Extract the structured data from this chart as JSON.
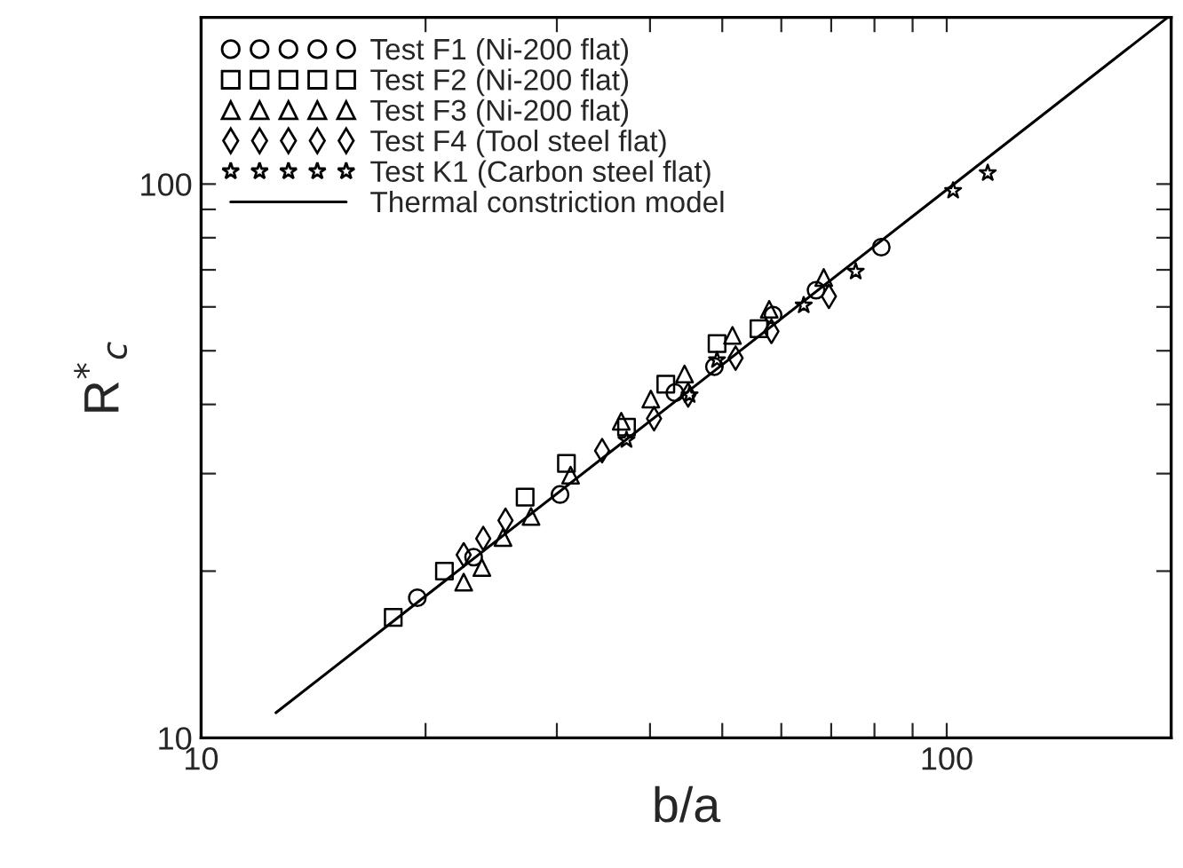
{
  "chart_data": {
    "type": "scatter",
    "xlabel": "b/a",
    "ylabel": "R$^{*}$$_{c}$",
    "log": "xy",
    "legend": "top left",
    "grid": false,
    "xlim": [
      10,
      200
    ],
    "ylim": [
      10,
      200
    ],
    "xticks": [
      10,
      {
        "value": 20,
        "label": null
      },
      {
        "value": 30,
        "label": null
      },
      {
        "value": 40,
        "label": null
      },
      {
        "value": 50,
        "label": null
      },
      {
        "value": 60,
        "label": null
      },
      {
        "value": 70,
        "label": null
      },
      {
        "value": 80,
        "label": null
      },
      {
        "value": 90,
        "label": null
      },
      100,
      {
        "value": 200,
        "label": null
      }
    ],
    "yticks": [
      10,
      {
        "value": 20,
        "label": null
      },
      {
        "value": 30,
        "label": null
      },
      {
        "value": 40,
        "label": null
      },
      {
        "value": 50,
        "label": null
      },
      {
        "value": 60,
        "label": null
      },
      {
        "value": 70,
        "label": null
      },
      {
        "value": 80,
        "label": null
      },
      {
        "value": 90,
        "label": null
      },
      100,
      {
        "value": 200,
        "label": null
      }
    ],
    "series": [
      {
        "name": "Test F1 (Ni-200 flat)",
        "color": "#000000",
        "marker": "circle",
        "x": [
          19.5,
          23.2,
          30.3,
          43.2,
          48.8,
          58.5,
          66.8,
          81.7
        ],
        "values": [
          17.9,
          21.2,
          27.5,
          42.0,
          46.8,
          58.0,
          64.3,
          76.9
        ]
      },
      {
        "name": "Test F2 (Ni-200 flat)",
        "color": "#000000",
        "marker": "square",
        "x": [
          18.1,
          21.2,
          27.2,
          30.9,
          37.2,
          42.0,
          49.2,
          56.0
        ],
        "values": [
          16.5,
          20.0,
          27.2,
          31.3,
          36.4,
          43.5,
          51.5,
          54.8
        ]
      },
      {
        "name": "Test F3 (Ni-200 flat)",
        "color": "#000000",
        "marker": "triangle",
        "x": [
          22.5,
          23.8,
          25.4,
          27.7,
          31.3,
          36.6,
          40.1,
          44.5,
          51.6,
          57.8,
          68.4
        ],
        "values": [
          19.1,
          20.3,
          23.0,
          25.1,
          29.8,
          37.3,
          40.9,
          45.4,
          53.3,
          59.4,
          67.8
        ]
      },
      {
        "name": "Test F4 (Tool steel flat)",
        "color": "#000000",
        "marker": "diamond",
        "x": [
          22.5,
          23.9,
          25.6,
          34.5,
          40.5,
          45.0,
          52.1,
          58.2,
          69.5
        ],
        "values": [
          21.4,
          22.9,
          24.7,
          33.0,
          37.7,
          41.6,
          48.5,
          54.2,
          62.7
        ]
      },
      {
        "name": "Test K1 (Carbon steel flat)",
        "color": "#000000",
        "marker": "star",
        "x": [
          37.2,
          45.2,
          49.2,
          64.3,
          75.5,
          102,
          113.5
        ],
        "values": [
          34.5,
          41.6,
          48.1,
          60.4,
          69.5,
          97.3,
          104.7
        ]
      },
      {
        "name": "Thermal constriction model",
        "type": "line",
        "color": "#000000",
        "marker": "none",
        "line_style": "solid",
        "x": [
          12.6,
          197
        ],
        "values": [
          11.1,
          199
        ]
      }
    ]
  }
}
